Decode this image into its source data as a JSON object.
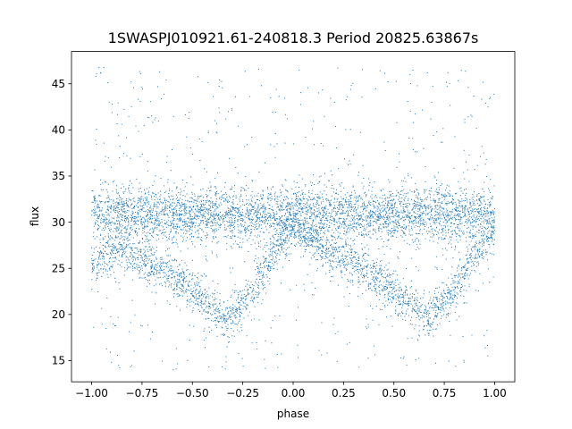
{
  "chart_data": {
    "type": "scatter",
    "title": "1SWASPJ010921.61-240818.3 Period 20825.63867s",
    "xlabel": "phase",
    "ylabel": "flux",
    "xlim": [
      -1.1,
      1.1
    ],
    "ylim": [
      12.7,
      48.5
    ],
    "x_ticks": [
      -1.0,
      -0.75,
      -0.5,
      -0.25,
      0.0,
      0.25,
      0.5,
      0.75,
      1.0
    ],
    "x_tick_labels": [
      "−1.00",
      "−0.75",
      "−0.50",
      "−0.25",
      "0.00",
      "0.25",
      "0.50",
      "0.75",
      "1.00"
    ],
    "y_ticks": [
      15,
      20,
      25,
      30,
      35,
      40,
      45
    ],
    "y_tick_labels": [
      "15",
      "20",
      "25",
      "30",
      "35",
      "40",
      "45"
    ],
    "grid": false,
    "legend": "none",
    "marker_color": "#1f77b4",
    "x_range_of_data": [
      -1.0,
      1.0
    ],
    "series": [
      {
        "component": "constant-flux band",
        "x": [
          -1.0,
          -0.75,
          -0.5,
          -0.25,
          0.0,
          0.25,
          0.5,
          0.75,
          1.0
        ],
        "y": [
          30.8,
          30.8,
          30.8,
          30.8,
          30.8,
          30.8,
          30.8,
          30.8,
          30.8
        ],
        "scatter_sd": 1.5
      },
      {
        "component": "eclipsing branch",
        "x": [
          -1.0,
          -0.85,
          -0.7,
          -0.55,
          -0.45,
          -0.33,
          -0.2,
          -0.1,
          0.0,
          0.15,
          0.3,
          0.45,
          0.55,
          0.67,
          0.8,
          0.9,
          1.0
        ],
        "y": [
          25.5,
          27.0,
          25.5,
          23.5,
          21.5,
          19.5,
          22.5,
          26.5,
          29.8,
          27.0,
          25.5,
          23.5,
          21.5,
          19.5,
          22.5,
          26.5,
          29.0
        ],
        "scatter_sd": 1.1
      },
      {
        "component": "outliers",
        "x_range": [
          -1.0,
          1.0
        ],
        "y_range": [
          14.0,
          46.8
        ]
      }
    ]
  }
}
